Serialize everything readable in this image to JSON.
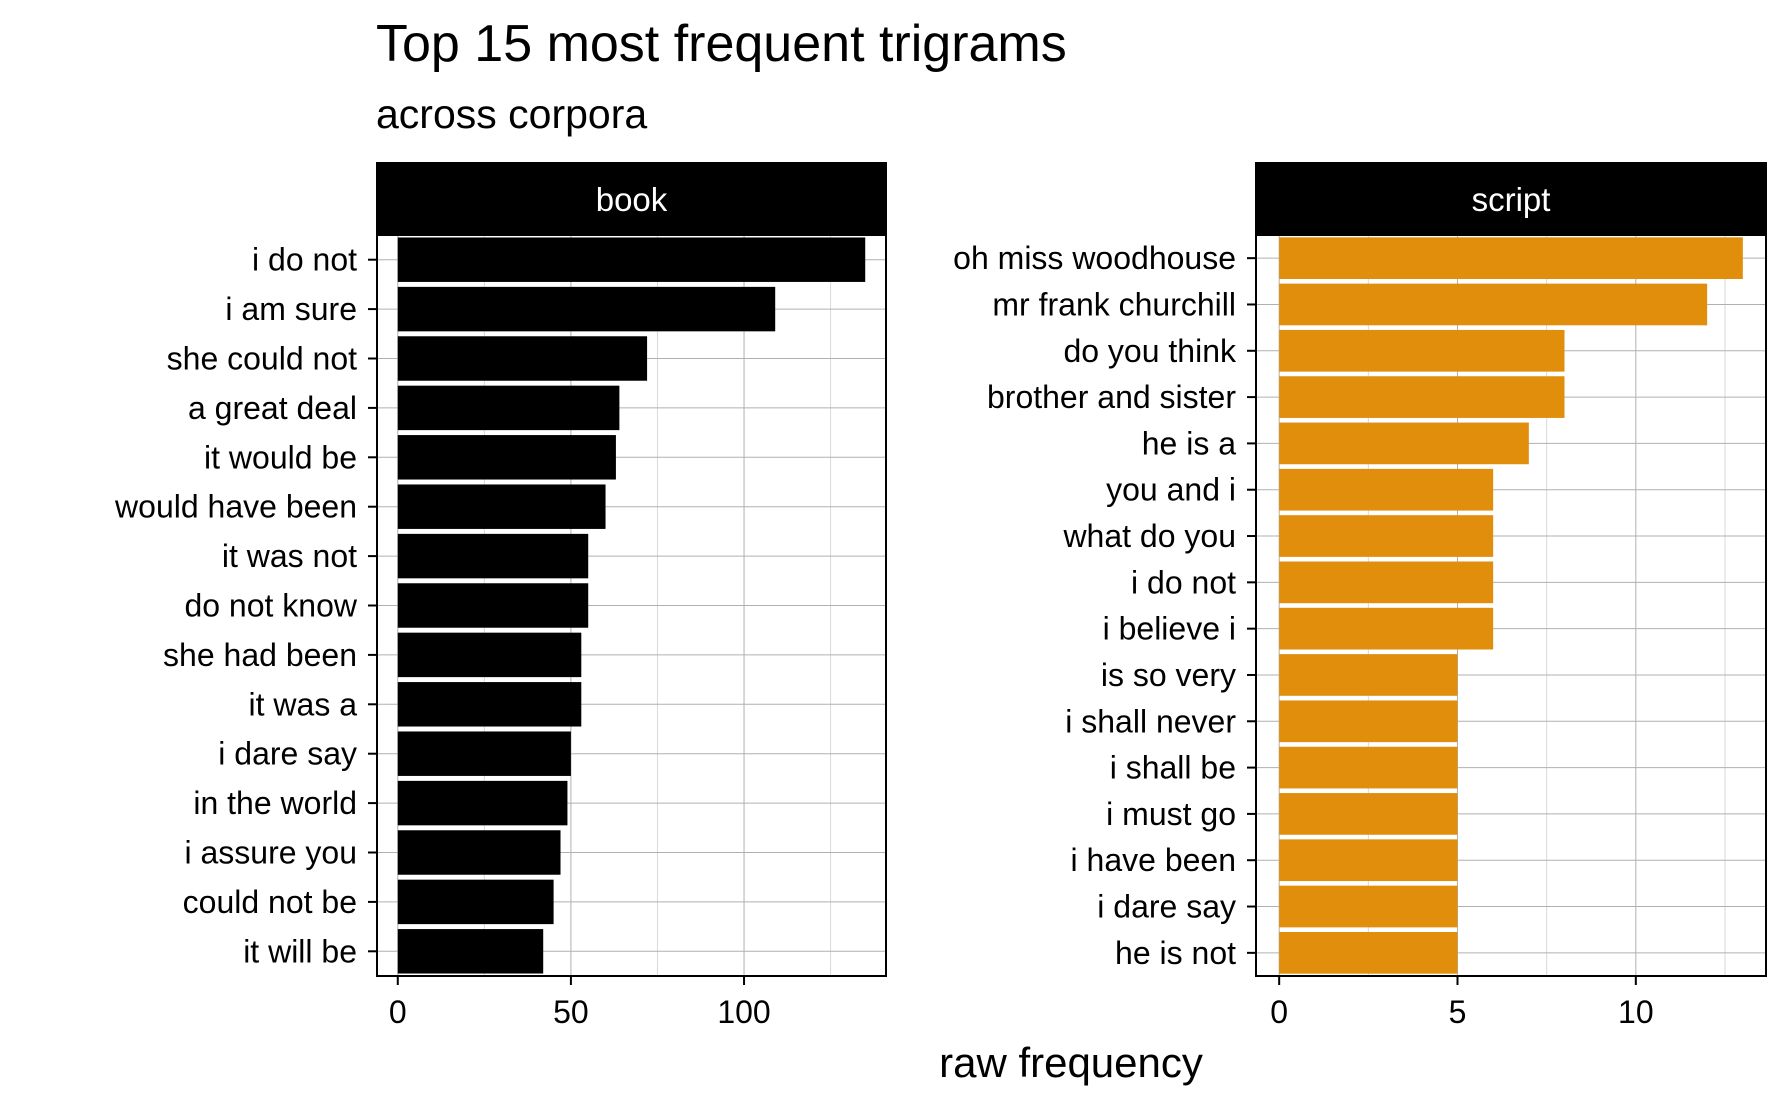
{
  "chart_data": {
    "type": "bar",
    "title": "Top 15 most frequent trigrams",
    "subtitle": "across corpora",
    "xlabel": "raw frequency",
    "ylabel": "",
    "orientation": "horizontal",
    "grid": true,
    "colors": {
      "book": "#000000",
      "script": "#E08E0B",
      "strip_background": "#000000",
      "strip_text": "#FFFFFF",
      "gridline": "#B0B0B0"
    },
    "panels": [
      {
        "name": "book",
        "xlim": [
          -6,
          141
        ],
        "ticks": [
          0,
          50,
          100
        ],
        "categories": [
          "i do not",
          "i am sure",
          "she could not",
          "a great deal",
          "it would be",
          "would have been",
          "it was not",
          "do not know",
          "she had been",
          "it was a",
          "i dare say",
          "in the world",
          "i assure you",
          "could not be",
          "it will be"
        ],
        "values": [
          135,
          109,
          72,
          64,
          63,
          60,
          55,
          55,
          53,
          53,
          50,
          49,
          47,
          45,
          42
        ]
      },
      {
        "name": "script",
        "xlim": [
          -0.65,
          13.65
        ],
        "ticks": [
          0,
          5,
          10
        ],
        "categories": [
          "oh miss woodhouse",
          "mr frank churchill",
          "do you think",
          "brother and sister",
          "he is a",
          "you and i",
          "what do you",
          "i do not",
          "i believe i",
          "is so very",
          "i shall never",
          "i shall be",
          "i must go",
          "i have been",
          "i dare say",
          "he is not"
        ],
        "values": [
          13,
          12,
          8,
          8,
          7,
          6,
          6,
          6,
          6,
          5,
          5,
          5,
          5,
          5,
          5,
          5
        ]
      }
    ]
  }
}
